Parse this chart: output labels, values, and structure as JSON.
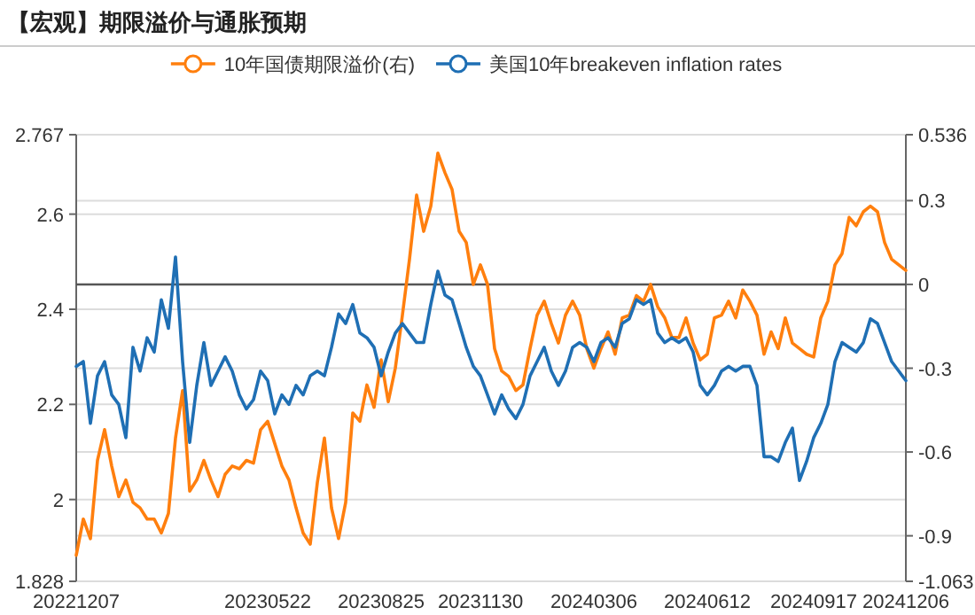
{
  "chart_data": {
    "type": "line",
    "title": "【宏观】期限溢价与通胀预期",
    "categories": [
      "20221207",
      null,
      null,
      null,
      null,
      null,
      null,
      null,
      null,
      null,
      null,
      null,
      null,
      null,
      null,
      null,
      null,
      null,
      null,
      null,
      null,
      null,
      null,
      null,
      null,
      null,
      null,
      "20230522",
      null,
      null,
      null,
      null,
      null,
      null,
      null,
      null,
      null,
      null,
      null,
      null,
      null,
      null,
      null,
      "20230825",
      null,
      null,
      null,
      null,
      null,
      null,
      null,
      null,
      null,
      null,
      null,
      null,
      null,
      "20231130",
      null,
      null,
      null,
      null,
      null,
      null,
      null,
      null,
      null,
      null,
      null,
      null,
      null,
      null,
      null,
      "20240306",
      null,
      null,
      null,
      null,
      null,
      null,
      null,
      null,
      null,
      null,
      null,
      null,
      null,
      null,
      null,
      "20240612",
      null,
      null,
      null,
      null,
      null,
      null,
      null,
      null,
      null,
      null,
      null,
      null,
      null,
      null,
      "20240917",
      null,
      null,
      null,
      null,
      null,
      null,
      null,
      null,
      null,
      null,
      null,
      null,
      "20241206"
    ],
    "series": [
      {
        "name": "10年国债期限溢价(右)",
        "color": "#ff7f0e",
        "axis": "y2",
        "values": [
          -0.97,
          -0.84,
          -0.91,
          -0.63,
          -0.52,
          -0.65,
          -0.76,
          -0.7,
          -0.78,
          -0.8,
          -0.84,
          -0.84,
          -0.89,
          -0.82,
          -0.55,
          -0.38,
          -0.74,
          -0.7,
          -0.63,
          -0.7,
          -0.76,
          -0.68,
          -0.65,
          -0.66,
          -0.63,
          -0.64,
          -0.52,
          -0.49,
          -0.57,
          -0.65,
          -0.7,
          -0.8,
          -0.89,
          -0.93,
          -0.71,
          -0.55,
          -0.8,
          -0.91,
          -0.78,
          -0.46,
          -0.49,
          -0.36,
          -0.44,
          -0.27,
          -0.42,
          -0.3,
          -0.11,
          0.09,
          0.32,
          0.19,
          0.28,
          0.47,
          0.4,
          0.34,
          0.19,
          0.15,
          0.0,
          0.07,
          0.0,
          -0.23,
          -0.31,
          -0.33,
          -0.38,
          -0.36,
          -0.23,
          -0.11,
          -0.06,
          -0.14,
          -0.21,
          -0.11,
          -0.06,
          -0.11,
          -0.23,
          -0.3,
          -0.23,
          -0.17,
          -0.25,
          -0.12,
          -0.11,
          -0.04,
          -0.06,
          0.0,
          -0.08,
          -0.12,
          -0.19,
          -0.19,
          -0.12,
          -0.21,
          -0.27,
          -0.25,
          -0.12,
          -0.11,
          -0.06,
          -0.12,
          -0.02,
          -0.06,
          -0.11,
          -0.25,
          -0.17,
          -0.23,
          -0.12,
          -0.21,
          -0.23,
          -0.25,
          -0.26,
          -0.12,
          -0.06,
          0.07,
          0.11,
          0.24,
          0.21,
          0.26,
          0.28,
          0.26,
          0.15,
          0.09,
          0.07,
          0.05
        ]
      },
      {
        "name": "美国10年breakeven inflation rates",
        "color": "#1f6fb4",
        "values": [
          2.28,
          2.29,
          2.16,
          2.26,
          2.29,
          2.22,
          2.2,
          2.13,
          2.32,
          2.27,
          2.34,
          2.31,
          2.42,
          2.36,
          2.51,
          2.29,
          2.12,
          2.24,
          2.33,
          2.24,
          2.27,
          2.3,
          2.27,
          2.22,
          2.19,
          2.21,
          2.27,
          2.25,
          2.18,
          2.22,
          2.2,
          2.24,
          2.22,
          2.26,
          2.27,
          2.26,
          2.32,
          2.39,
          2.37,
          2.41,
          2.35,
          2.34,
          2.32,
          2.26,
          2.31,
          2.35,
          2.37,
          2.35,
          2.33,
          2.33,
          2.41,
          2.48,
          2.43,
          2.42,
          2.37,
          2.32,
          2.28,
          2.26,
          2.22,
          2.18,
          2.22,
          2.19,
          2.17,
          2.2,
          2.26,
          2.29,
          2.32,
          2.27,
          2.24,
          2.27,
          2.32,
          2.33,
          2.32,
          2.29,
          2.33,
          2.34,
          2.32,
          2.37,
          2.38,
          2.42,
          2.41,
          2.42,
          2.35,
          2.33,
          2.34,
          2.33,
          2.34,
          2.31,
          2.24,
          2.22,
          2.24,
          2.27,
          2.28,
          2.27,
          2.28,
          2.28,
          2.24,
          2.09,
          2.09,
          2.08,
          2.12,
          2.15,
          2.04,
          2.08,
          2.13,
          2.16,
          2.2,
          2.29,
          2.33,
          2.32,
          2.31,
          2.33,
          2.38,
          2.37,
          2.33,
          2.29,
          2.27,
          2.25
        ]
      }
    ],
    "ylim": [
      1.828,
      2.767
    ],
    "yticks": [
      1.828,
      2,
      2.2,
      2.4,
      2.6,
      2.767
    ],
    "y2lim": [
      -1.063,
      0.536
    ],
    "y2ticks": [
      -1.063,
      -0.9,
      -0.6,
      -0.3,
      0,
      0.3,
      0.536
    ],
    "ref_lines": [
      {
        "axis": "y2",
        "value": 0,
        "color": "#555555"
      }
    ],
    "grid": true,
    "legend": "top",
    "line_style": "solid"
  }
}
